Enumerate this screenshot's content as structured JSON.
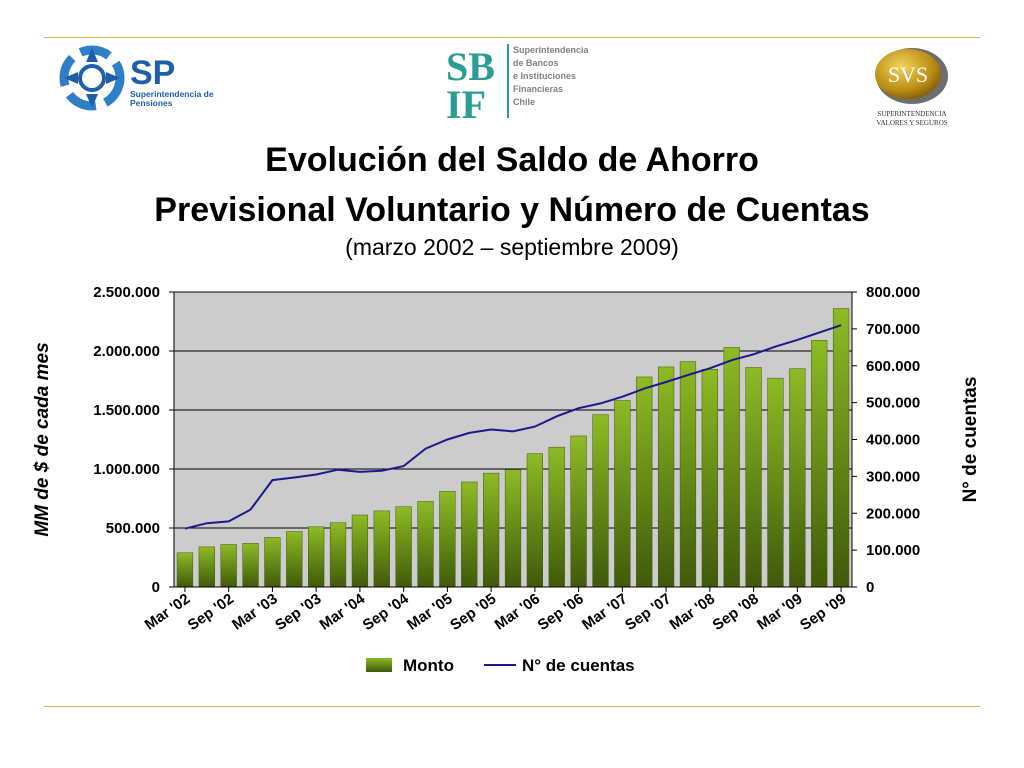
{
  "header": {
    "sp_logo": {
      "abbr": "SP",
      "line1": "Superintendencia de",
      "line2": "Pensiones"
    },
    "sbif_logo": {
      "abbr1": "SB",
      "abbr2": "IF",
      "lines": [
        "Superintendencia",
        "de Bancos",
        "e Instituciones",
        "Financieras",
        "Chile"
      ]
    },
    "svs_logo": {
      "abbr": "SVS",
      "line1": "SUPERINTENDENCIA",
      "line2": "VALORES Y SEGUROS"
    }
  },
  "slide": {
    "title_line1": "Evolución del Saldo de Ahorro",
    "title_line2": "Previsional Voluntario y Número de Cuentas",
    "subtitle": "(marzo 2002 – septiembre 2009)"
  },
  "colors": {
    "bar": "#7aa51c",
    "bar_dark": "#3f5a0a",
    "line": "#1a1a8c",
    "plot_bg": "#cccccc",
    "rule": "#e8b04a"
  },
  "chart_data": {
    "type": "bar",
    "ylabel": "MM de $ de cada mes",
    "y2label": "N° de cuentas",
    "ylim": [
      0,
      2500000
    ],
    "y2lim": [
      0,
      800000
    ],
    "yticks": [
      "0",
      "500.000",
      "1.000.000",
      "1.500.000",
      "2.000.000",
      "2.500.000"
    ],
    "y2ticks": [
      "0",
      "100.000",
      "200.000",
      "300.000",
      "400.000",
      "500.000",
      "600.000",
      "700.000",
      "800.000"
    ],
    "xtick_labels": [
      "Mar '02",
      "Sep '02",
      "Mar '03",
      "Sep '03",
      "Mar '04",
      "Sep '04",
      "Mar '05",
      "Sep '05",
      "Mar '06",
      "Sep '06",
      "Mar '07",
      "Sep '07",
      "Mar '08",
      "Sep '08",
      "Mar '09",
      "Sep '09"
    ],
    "grid": true,
    "legend_position": "bottom",
    "series": [
      {
        "name": "Monto",
        "type": "bar",
        "axis": "left",
        "x": [
          "2002-03",
          "2002-06",
          "2002-09",
          "2002-12",
          "2003-03",
          "2003-06",
          "2003-09",
          "2003-12",
          "2004-03",
          "2004-06",
          "2004-09",
          "2004-12",
          "2005-03",
          "2005-06",
          "2005-09",
          "2005-12",
          "2006-03",
          "2006-06",
          "2006-09",
          "2006-12",
          "2007-03",
          "2007-06",
          "2007-09",
          "2007-12",
          "2008-03",
          "2008-06",
          "2008-09",
          "2008-12",
          "2009-03",
          "2009-06",
          "2009-09"
        ],
        "values": [
          290000,
          340000,
          360000,
          370000,
          420000,
          470000,
          510000,
          545000,
          610000,
          645000,
          680000,
          725000,
          810000,
          890000,
          965000,
          995000,
          1130000,
          1185000,
          1280000,
          1460000,
          1580000,
          1780000,
          1865000,
          1910000,
          1845000,
          2030000,
          1860000,
          1770000,
          1850000,
          2090000,
          2360000
        ]
      },
      {
        "name": "N° de cuentas",
        "type": "line",
        "axis": "right",
        "x": [
          "2002-03",
          "2002-06",
          "2002-09",
          "2002-12",
          "2003-03",
          "2003-06",
          "2003-09",
          "2003-12",
          "2004-03",
          "2004-06",
          "2004-09",
          "2004-12",
          "2005-03",
          "2005-06",
          "2005-09",
          "2005-12",
          "2006-03",
          "2006-06",
          "2006-09",
          "2006-12",
          "2007-03",
          "2007-06",
          "2007-09",
          "2007-12",
          "2008-03",
          "2008-06",
          "2008-09",
          "2008-12",
          "2009-03",
          "2009-06",
          "2009-09"
        ],
        "values": [
          158000,
          173000,
          178000,
          210000,
          290000,
          297000,
          305000,
          318000,
          312000,
          315000,
          328000,
          375000,
          400000,
          418000,
          427000,
          422000,
          435000,
          463000,
          485000,
          498000,
          516000,
          538000,
          556000,
          575000,
          593000,
          615000,
          631000,
          652000,
          670000,
          690000,
          710000
        ]
      }
    ]
  }
}
